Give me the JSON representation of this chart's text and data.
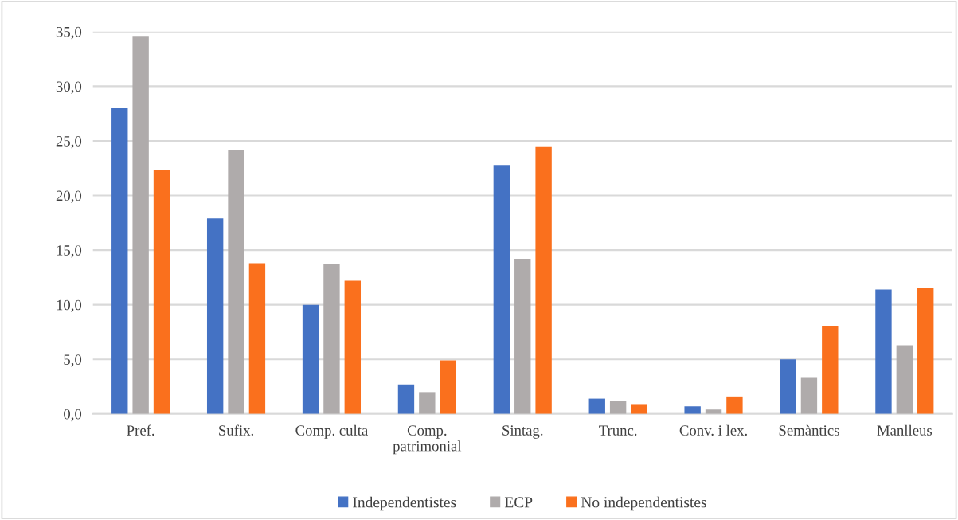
{
  "chart_data": {
    "type": "bar",
    "categories": [
      "Pref.",
      "Sufix.",
      "Comp. culta",
      "Comp.\npatrimonial",
      "Sintag.",
      "Trunc.",
      "Conv. i lex.",
      "Semàntics",
      "Manlleus"
    ],
    "series": [
      {
        "name": "Independentistes",
        "color": "#4472c4",
        "values": [
          28.0,
          17.9,
          10.0,
          2.7,
          22.8,
          1.4,
          0.7,
          5.0,
          11.4
        ]
      },
      {
        "name": "ECP",
        "color": "#afabab",
        "values": [
          34.6,
          24.2,
          13.7,
          2.0,
          14.2,
          1.2,
          0.4,
          3.3,
          6.3
        ]
      },
      {
        "name": "No independentistes",
        "color": "#fa701d",
        "values": [
          22.3,
          13.8,
          12.2,
          4.9,
          24.5,
          0.9,
          1.6,
          8.0,
          11.5
        ]
      }
    ],
    "ylim": [
      0,
      35
    ],
    "yticks": [
      {
        "value": 0,
        "label": "0,0"
      },
      {
        "value": 5,
        "label": "5,0"
      },
      {
        "value": 10,
        "label": "10,0"
      },
      {
        "value": 15,
        "label": "15,0"
      },
      {
        "value": 20,
        "label": "20,0"
      },
      {
        "value": 25,
        "label": "25,0"
      },
      {
        "value": 30,
        "label": "30,0"
      },
      {
        "value": 35,
        "label": "35,0"
      }
    ],
    "grid": "y",
    "legend": "bottom"
  }
}
